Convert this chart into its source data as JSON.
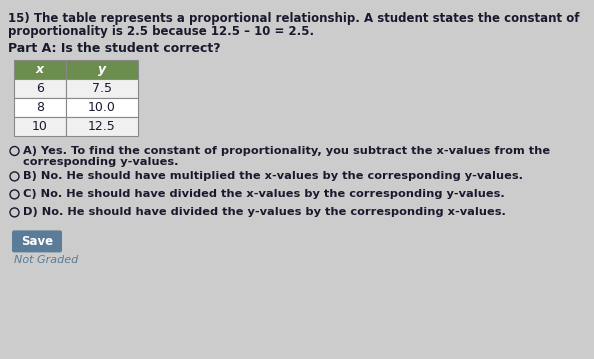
{
  "background_color": "#cccccc",
  "question_number": "15)",
  "question_text1": " The table represents a proportional relationship. A student states the constant of",
  "question_text2": "proportionality is 2.5 because 12.5 – 10 = 2.5.",
  "part_label": "Part A: Is the student correct?",
  "table_headers": [
    "x",
    "y"
  ],
  "table_data": [
    [
      "6",
      "7.5"
    ],
    [
      "8",
      "10.0"
    ],
    [
      "10",
      "12.5"
    ]
  ],
  "table_header_bg": "#6b8e4e",
  "table_header_text": "#ffffff",
  "table_row_bg_1": "#f0f0f0",
  "table_row_bg_2": "#ffffff",
  "table_border_color": "#888888",
  "option_a_line1": "A) Yes. To find the constant of proportionality, you subtract the x-values from the",
  "option_a_line2": "corresponding y-values.",
  "option_b": "B) No. He should have multiplied the x-values by the corresponding y-values.",
  "option_c": "C) No. He should have divided the x-values by the corresponding y-values.",
  "option_d": "D) No. He should have divided the y-values by the corresponding x-values.",
  "save_button_color": "#5b7c99",
  "save_button_text": "Save",
  "save_button_text_color": "#ffffff",
  "not_graded_text": "Not Graded",
  "not_graded_color": "#5b7c99",
  "text_color": "#1a1a2e",
  "circle_color": "#1a1a2e",
  "font_size_question": 8.5,
  "font_size_part": 9.0,
  "font_size_options": 8.2,
  "font_size_table": 9.0,
  "font_size_save": 8.5,
  "font_size_not_graded": 8.0
}
